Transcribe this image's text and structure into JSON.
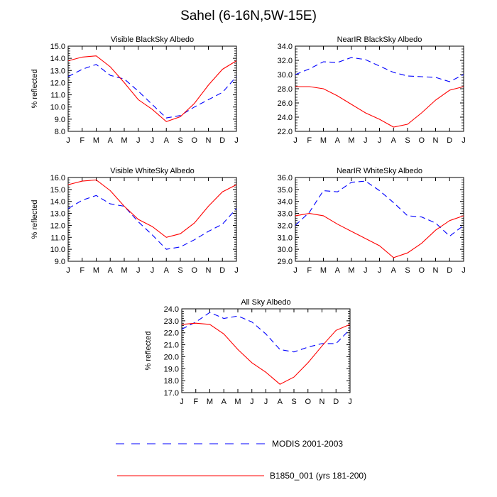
{
  "figure": {
    "title": "Sahel (6-16N,5W-15E)"
  },
  "chart_data": [
    {
      "type": "line",
      "title": "Visible BlackSky Albedo",
      "xlabel": "",
      "ylabel": "% reflected",
      "categories": [
        "J",
        "F",
        "M",
        "A",
        "M",
        "J",
        "J",
        "A",
        "S",
        "O",
        "N",
        "D",
        "J"
      ],
      "ylim": [
        8.0,
        15.0
      ],
      "yticks": [
        "8.0",
        "9.0",
        "10.0",
        "11.0",
        "12.0",
        "13.0",
        "14.0",
        "15.0"
      ],
      "series": [
        {
          "name": "MODIS 2001-2003",
          "values": [
            12.5,
            13.1,
            13.5,
            12.6,
            12.3,
            11.3,
            10.2,
            9.1,
            9.3,
            10.0,
            10.6,
            11.2,
            12.5
          ]
        },
        {
          "name": "B1850_001 (yrs 181-200)",
          "values": [
            13.8,
            14.1,
            14.2,
            13.3,
            12.0,
            10.6,
            9.8,
            8.8,
            9.2,
            10.3,
            11.8,
            13.1,
            13.8
          ]
        }
      ]
    },
    {
      "type": "line",
      "title": "NearIR BlackSky Albedo",
      "xlabel": "",
      "ylabel": "",
      "categories": [
        "J",
        "F",
        "M",
        "A",
        "M",
        "J",
        "J",
        "A",
        "S",
        "O",
        "N",
        "D",
        "J"
      ],
      "ylim": [
        22.0,
        34.0
      ],
      "yticks": [
        "22.0",
        "24.0",
        "26.0",
        "28.0",
        "30.0",
        "32.0",
        "34.0"
      ],
      "series": [
        {
          "name": "MODIS 2001-2003",
          "values": [
            30.0,
            30.8,
            31.8,
            31.7,
            32.4,
            32.1,
            31.2,
            30.3,
            29.8,
            29.7,
            29.6,
            29.0,
            30.0
          ]
        },
        {
          "name": "B1850_001 (yrs 181-200)",
          "values": [
            28.3,
            28.3,
            28.0,
            27.0,
            25.8,
            24.6,
            23.7,
            22.6,
            23.0,
            24.6,
            26.4,
            27.8,
            28.3
          ]
        }
      ]
    },
    {
      "type": "line",
      "title": "Visible WhiteSky Albedo",
      "xlabel": "",
      "ylabel": "% reflected",
      "categories": [
        "J",
        "F",
        "M",
        "A",
        "M",
        "J",
        "J",
        "A",
        "S",
        "O",
        "N",
        "D",
        "J"
      ],
      "ylim": [
        9.0,
        16.0
      ],
      "yticks": [
        "9.0",
        "10.0",
        "11.0",
        "12.0",
        "13.0",
        "14.0",
        "15.0",
        "16.0"
      ],
      "series": [
        {
          "name": "MODIS 2001-2003",
          "values": [
            13.4,
            14.1,
            14.5,
            13.8,
            13.6,
            12.3,
            11.2,
            10.0,
            10.2,
            10.8,
            11.5,
            12.1,
            13.4
          ]
        },
        {
          "name": "B1850_001 (yrs 181-200)",
          "values": [
            15.4,
            15.7,
            15.8,
            14.9,
            13.6,
            12.5,
            11.9,
            11.0,
            11.3,
            12.2,
            13.6,
            14.8,
            15.4
          ]
        }
      ]
    },
    {
      "type": "line",
      "title": "NearIR WhiteSky Albedo",
      "xlabel": "",
      "ylabel": "",
      "categories": [
        "J",
        "F",
        "M",
        "A",
        "M",
        "J",
        "J",
        "A",
        "S",
        "O",
        "N",
        "D",
        "J"
      ],
      "ylim": [
        29.0,
        36.0
      ],
      "yticks": [
        "29.0",
        "30.0",
        "31.0",
        "32.0",
        "33.0",
        "34.0",
        "35.0",
        "36.0"
      ],
      "series": [
        {
          "name": "MODIS 2001-2003",
          "values": [
            32.0,
            33.1,
            34.9,
            34.8,
            35.6,
            35.7,
            34.9,
            33.9,
            32.8,
            32.7,
            32.2,
            31.1,
            32.0
          ]
        },
        {
          "name": "B1850_001 (yrs 181-200)",
          "values": [
            32.8,
            33.0,
            32.8,
            32.1,
            31.5,
            30.9,
            30.3,
            29.3,
            29.7,
            30.5,
            31.6,
            32.4,
            32.8
          ]
        }
      ]
    },
    {
      "type": "line",
      "title": "All Sky Albedo",
      "xlabel": "",
      "ylabel": "% reflected",
      "categories": [
        "J",
        "F",
        "M",
        "A",
        "M",
        "J",
        "J",
        "A",
        "S",
        "O",
        "N",
        "D",
        "J"
      ],
      "ylim": [
        17.0,
        24.0
      ],
      "yticks": [
        "17.0",
        "18.0",
        "19.0",
        "20.0",
        "21.0",
        "22.0",
        "23.0",
        "24.0"
      ],
      "series": [
        {
          "name": "MODIS 2001-2003",
          "values": [
            22.3,
            22.9,
            23.7,
            23.2,
            23.4,
            22.9,
            21.9,
            20.6,
            20.4,
            20.8,
            21.1,
            21.1,
            22.3
          ]
        },
        {
          "name": "B1850_001 (yrs 181-200)",
          "values": [
            22.7,
            22.8,
            22.7,
            21.9,
            20.6,
            19.5,
            18.7,
            17.7,
            18.3,
            19.5,
            20.9,
            22.2,
            22.7
          ]
        }
      ]
    }
  ],
  "legend": {
    "entries": [
      {
        "label": "MODIS 2001-2003",
        "color": "#0000ff",
        "style": "dashed"
      },
      {
        "label": "B1850_001 (yrs 181-200)",
        "color": "#ff0000",
        "style": "solid"
      }
    ]
  },
  "colors": {
    "modis": "#0000ff",
    "model": "#ff0000"
  }
}
